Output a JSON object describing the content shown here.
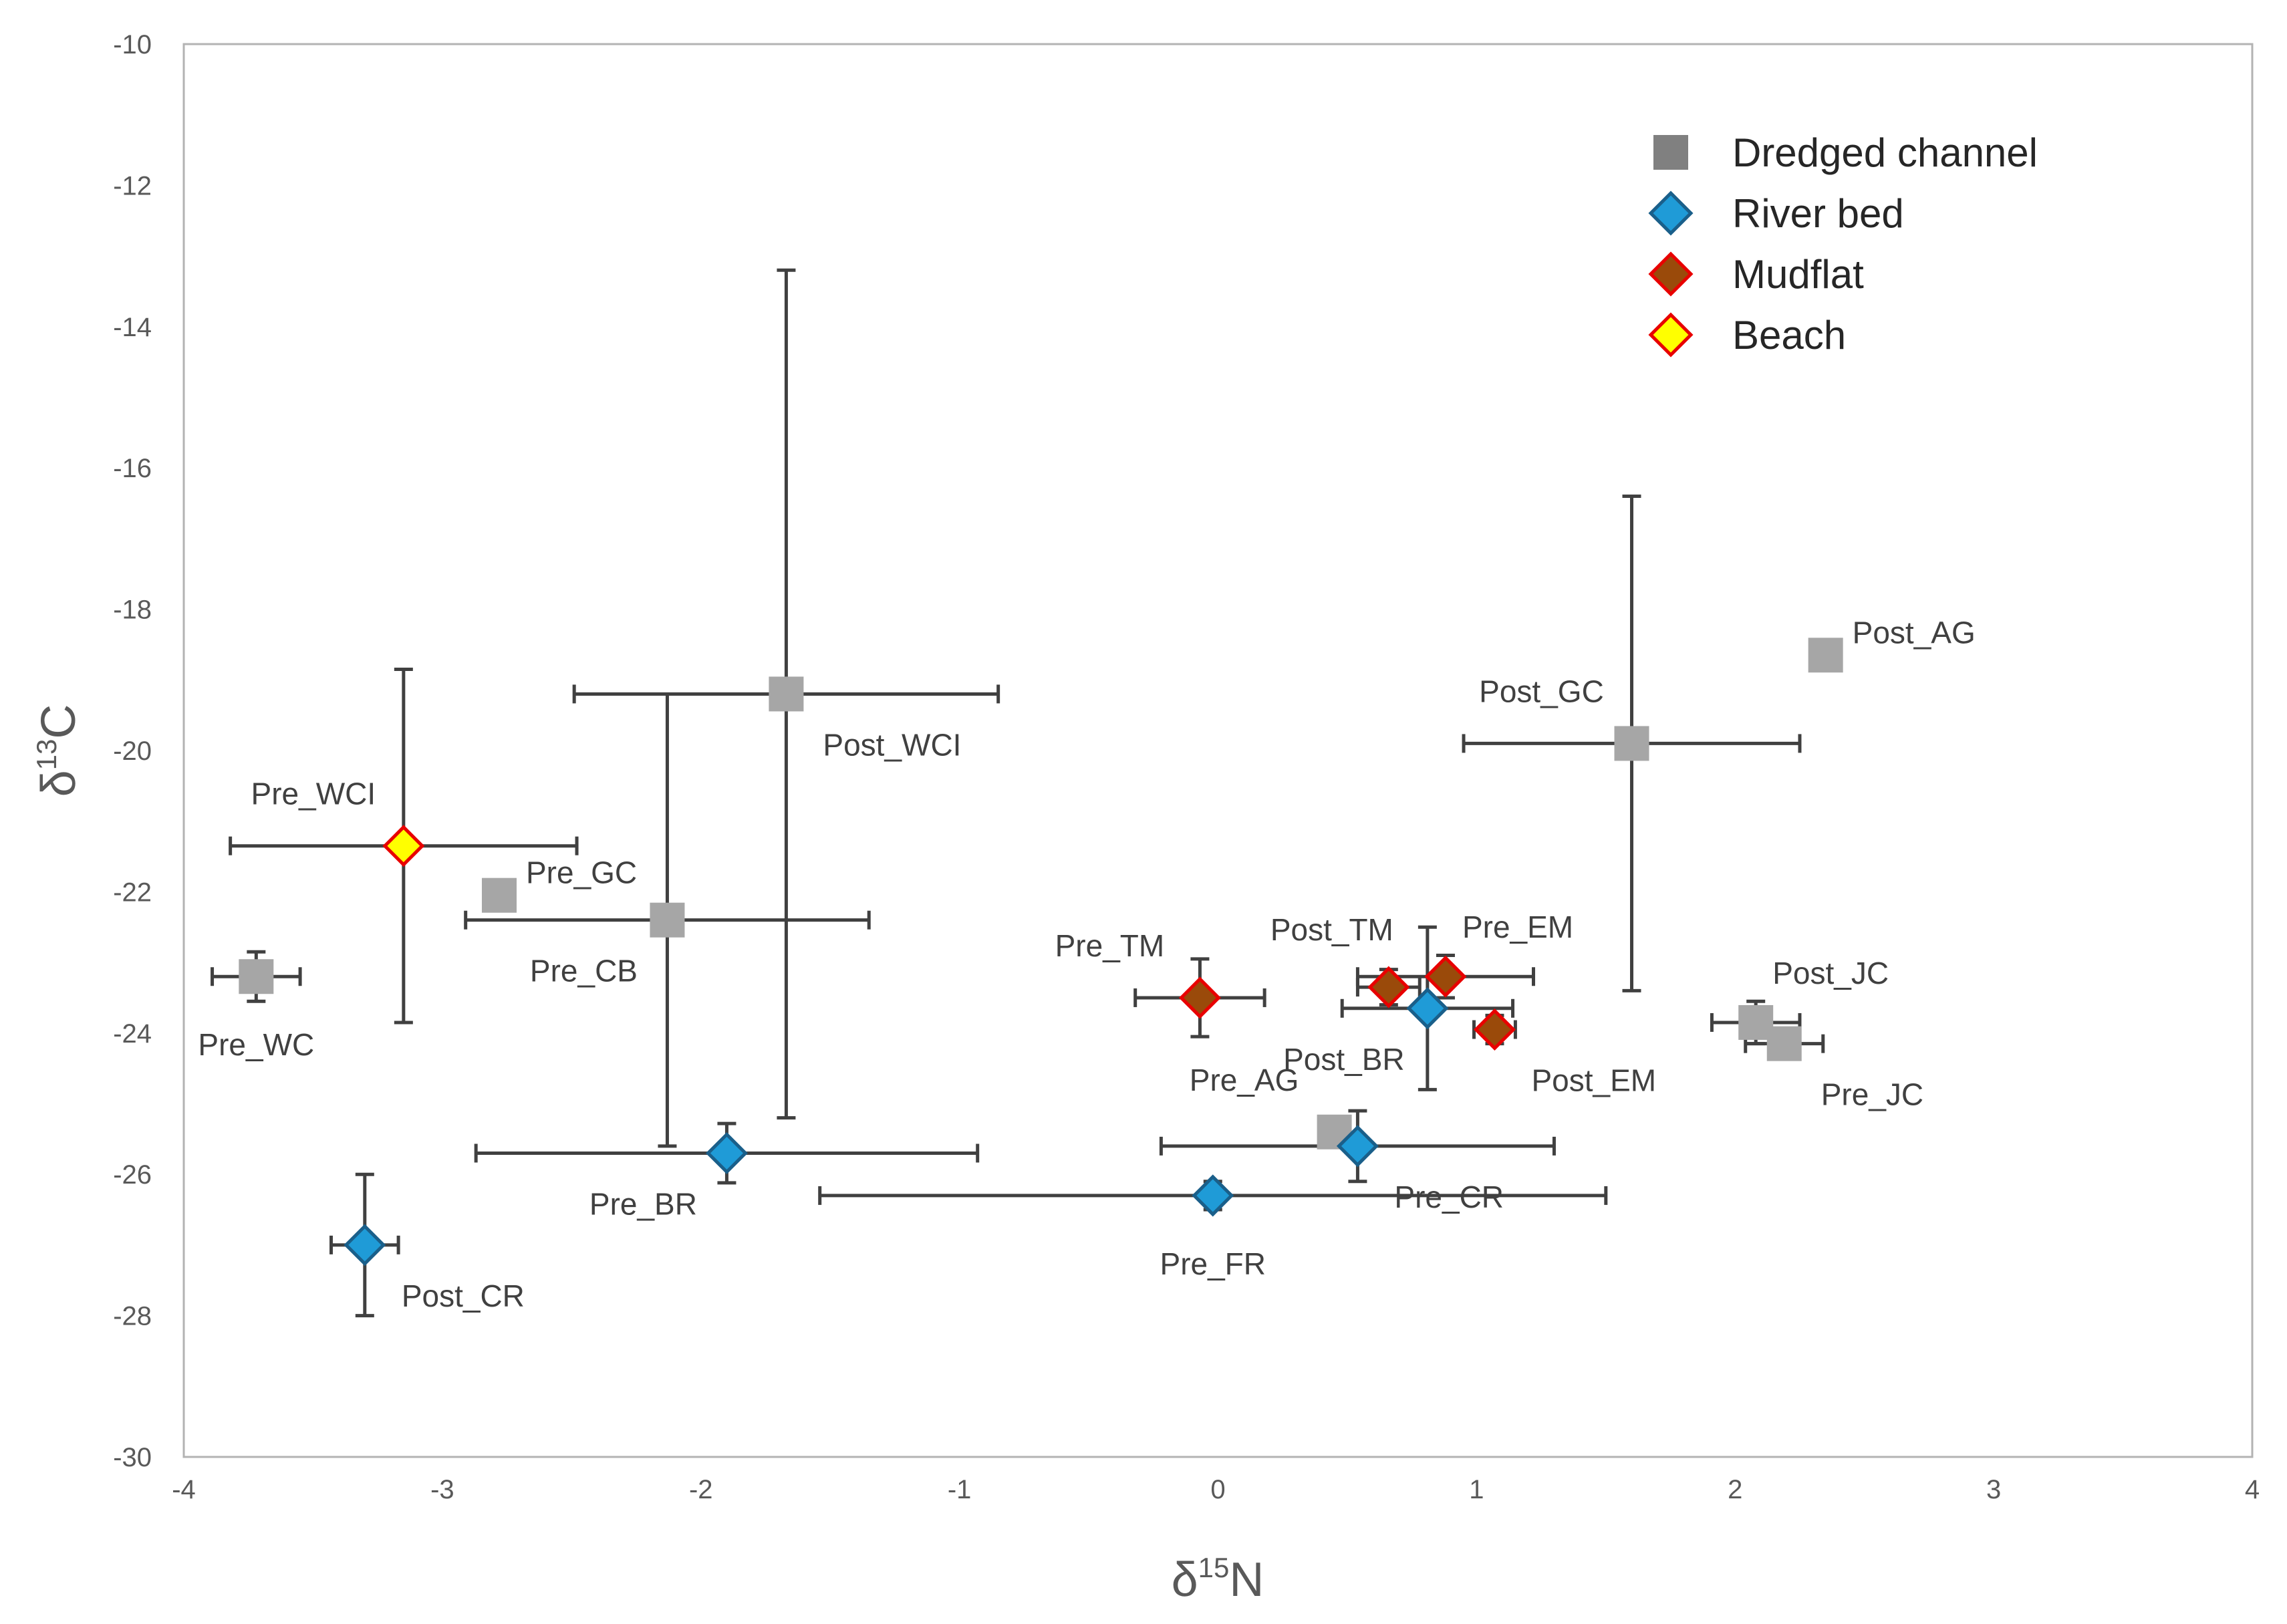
{
  "chart_data": {
    "type": "scatter",
    "title": "",
    "xlabel": "δ",
    "xlabel_sup": "15",
    "xlabel_tail": "N",
    "ylabel": "δ",
    "ylabel_sup": "13",
    "ylabel_tail": "C",
    "xlim": [
      -4,
      4
    ],
    "ylim": [
      -30,
      -10
    ],
    "xticks": [
      -4,
      -3,
      -2,
      -1,
      0,
      1,
      2,
      3,
      4
    ],
    "yticks": [
      -30,
      -28,
      -26,
      -24,
      -22,
      -20,
      -18,
      -16,
      -14,
      -12,
      -10
    ],
    "grid": false,
    "legend_position": "top-right",
    "series": [
      {
        "name": "Dredged channel",
        "marker": "square",
        "fill": "#A6A6A6",
        "legend_fill": "#808080",
        "stroke": "none",
        "points": [
          {
            "label": "Pre_WC",
            "x": -3.72,
            "y": -23.2,
            "xerr": 0.17,
            "yerr": 0.35,
            "label_pos": "below"
          },
          {
            "label": "Pre_GC",
            "x": -2.78,
            "y": -22.05,
            "xerr": null,
            "yerr": null,
            "label_pos": "right"
          },
          {
            "label": "Pre_CB",
            "x": -2.13,
            "y": -22.4,
            "xerr": 0.78,
            "yerr": 3.2,
            "label_pos": "below-left"
          },
          {
            "label": "Post_WCI",
            "x": -1.67,
            "y": -19.2,
            "xerr": 0.82,
            "yerr": 6.0,
            "label_pos": "below-right"
          },
          {
            "label": "Pre_AG",
            "x": 0.45,
            "y": -25.4,
            "xerr": null,
            "yerr": null,
            "label_pos": "above-left"
          },
          {
            "label": "Post_GC",
            "x": 1.6,
            "y": -19.9,
            "xerr": 0.65,
            "yerr": 3.5,
            "label_pos": "above-left"
          },
          {
            "label": "Post_AG",
            "x": 2.35,
            "y": -18.65,
            "xerr": null,
            "yerr": null,
            "label_pos": "right"
          },
          {
            "label": "Post_JC",
            "x": 2.08,
            "y": -23.85,
            "xerr": 0.17,
            "yerr": 0.3,
            "label_pos": "above-right"
          },
          {
            "label": "Pre_JC",
            "x": 2.19,
            "y": -24.15,
            "xerr": 0.15,
            "yerr": null,
            "label_pos": "below-right"
          }
        ]
      },
      {
        "name": "River bed",
        "marker": "diamond",
        "fill": "#1F9BD7",
        "stroke": "#1A5F8A",
        "points": [
          {
            "label": "Post_CR",
            "x": -3.3,
            "y": -27.0,
            "xerr": 0.13,
            "yerr": 1.0,
            "label_pos": "below-right"
          },
          {
            "label": "Pre_BR",
            "x": -1.9,
            "y": -25.7,
            "xerr": 0.97,
            "yerr": 0.42,
            "label_pos": "below-left"
          },
          {
            "label": "Pre_FR",
            "x": -0.02,
            "y": -26.3,
            "xerr": 1.52,
            "yerr": 0.2,
            "label_pos": "below"
          },
          {
            "label": "Pre_CR",
            "x": 0.54,
            "y": -25.6,
            "xerr": 0.76,
            "yerr": 0.5,
            "label_pos": "below-right"
          },
          {
            "label": "Post_BR",
            "x": 0.81,
            "y": -23.65,
            "xerr": 0.33,
            "yerr": 1.15,
            "label_pos": "below-left"
          }
        ]
      },
      {
        "name": "Mudflat",
        "marker": "diamond",
        "fill": "#9A4A0A",
        "stroke": "#E80000",
        "points": [
          {
            "label": "Pre_TM",
            "x": -0.07,
            "y": -23.5,
            "xerr": 0.25,
            "yerr": 0.55,
            "label_pos": "above-left"
          },
          {
            "label": "Post_TM",
            "x": 0.66,
            "y": -23.35,
            "xerr": 0.12,
            "yerr": 0.25,
            "label_pos": "above"
          },
          {
            "label": "Pre_EM",
            "x": 0.88,
            "y": -23.2,
            "xerr": 0.34,
            "yerr": 0.3,
            "label_pos": "above-right"
          },
          {
            "label": "Post_EM",
            "x": 1.07,
            "y": -23.95,
            "xerr": 0.08,
            "yerr": 0.2,
            "label_pos": "below-right"
          }
        ]
      },
      {
        "name": "Beach",
        "marker": "diamond",
        "fill": "#FFFF00",
        "stroke": "#E80000",
        "points": [
          {
            "label": "Pre_WCI",
            "x": -3.15,
            "y": -21.35,
            "xerr": 0.67,
            "yerr": 2.5,
            "label_pos": "above-left"
          }
        ]
      }
    ]
  }
}
